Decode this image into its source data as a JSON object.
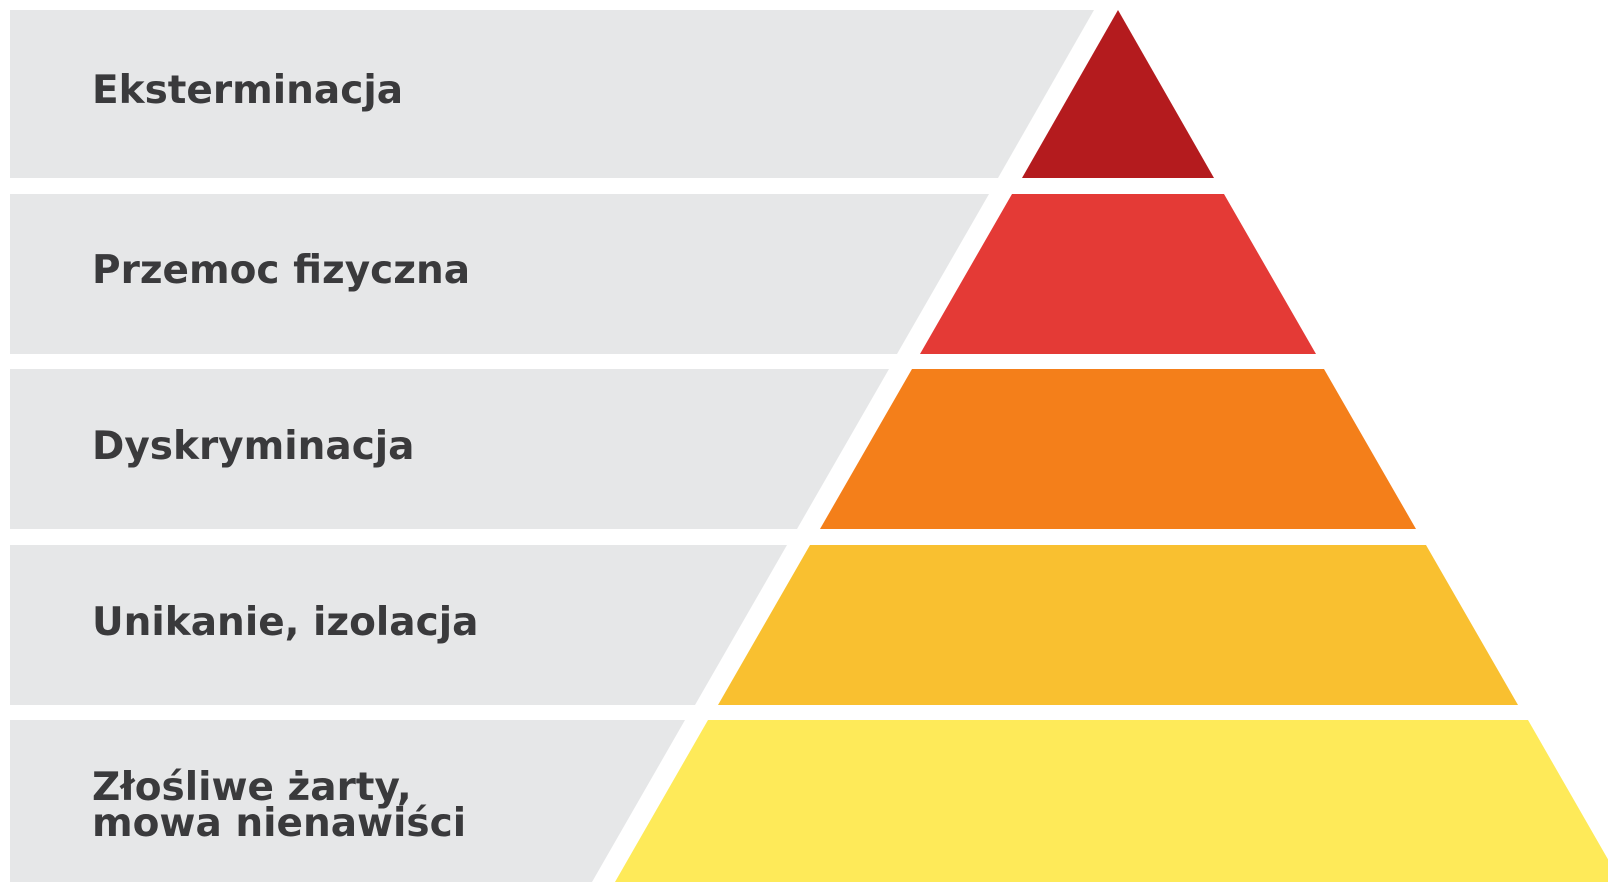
{
  "levels": [
    {
      "label_lines": [
        "Eksterminacja"
      ],
      "color": "#b41b1e"
    },
    {
      "label_lines": [
        "Przemoc fizyczna"
      ],
      "color": "#e43a36"
    },
    {
      "label_lines": [
        "Dyskryminacja"
      ],
      "color": "#f47f1a"
    },
    {
      "label_lines": [
        "Unikanie, izolacja"
      ],
      "color": "#f9c030"
    },
    {
      "label_lines": [
        "Złośliwe żarty,",
        "mowa nienawiści"
      ],
      "color": "#feea59"
    }
  ],
  "colors": {
    "label_band": "#e6e7e8",
    "label_text": "#3a3a3c",
    "background": "#ffffff"
  }
}
